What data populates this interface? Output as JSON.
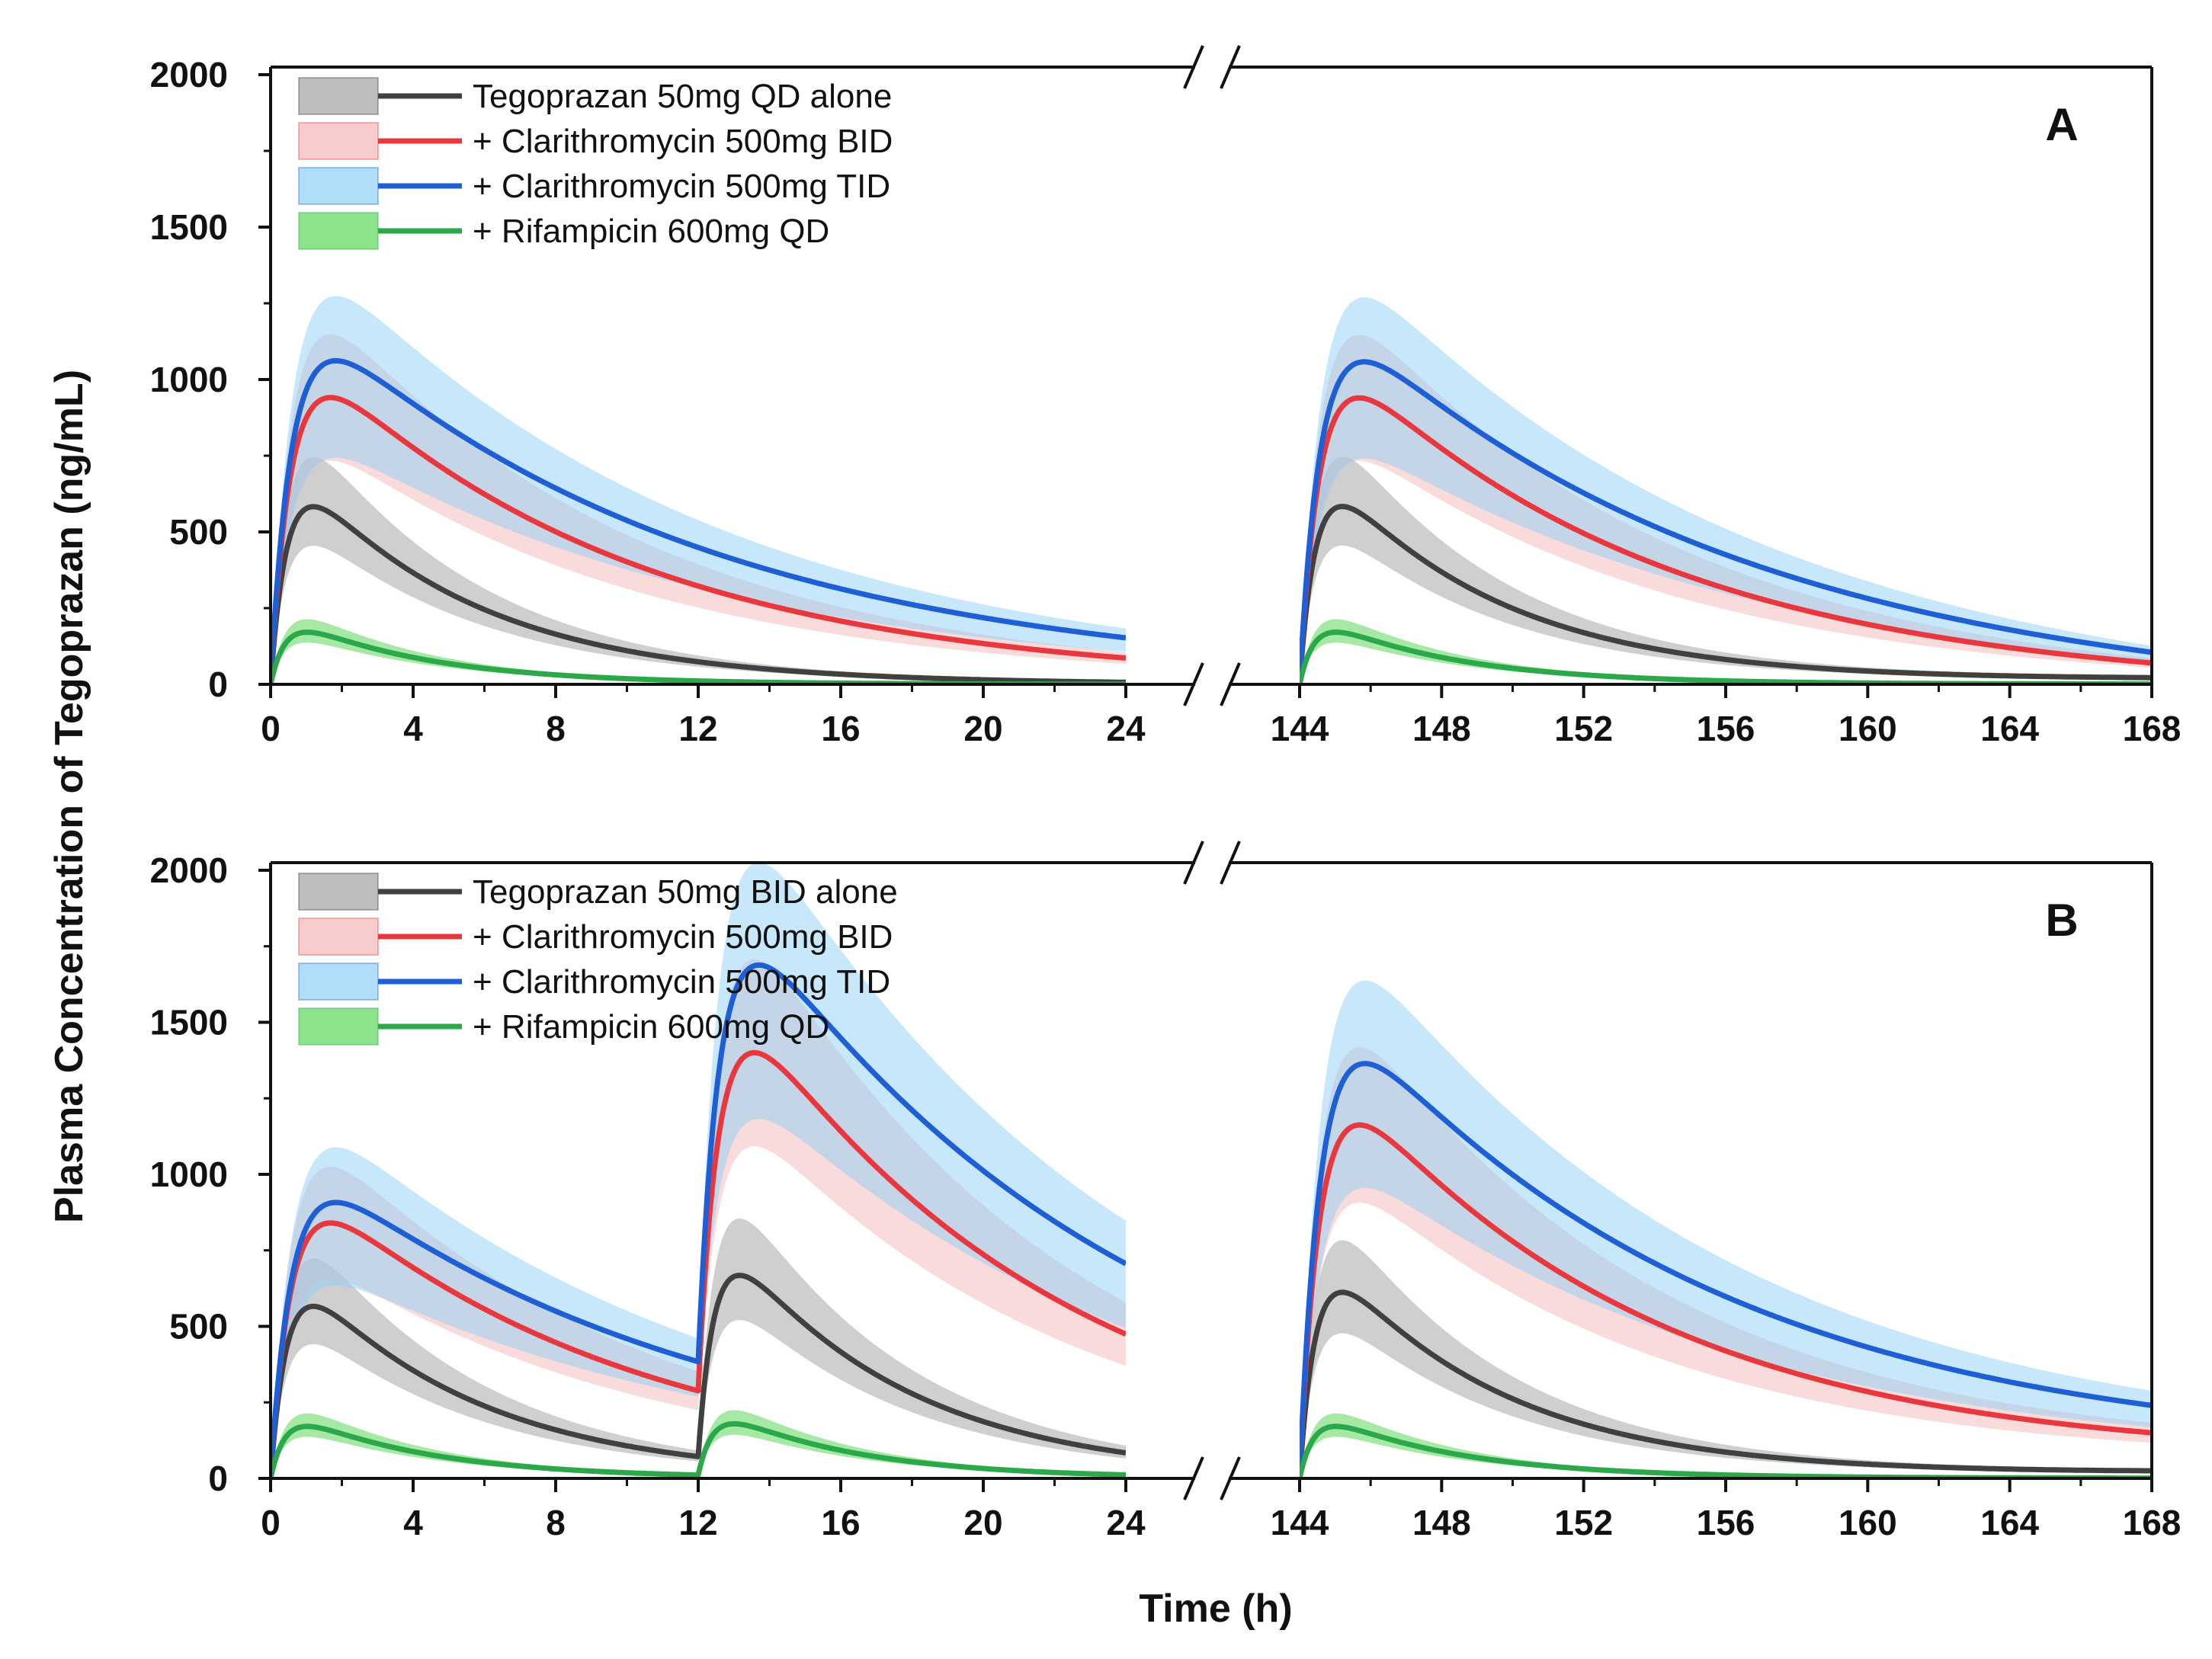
{
  "chart_data": {
    "type": "line",
    "ylabel": "Plasma Concentration of Tegoprazan (ng/mL)",
    "xlabel": "Time (h)",
    "ylim": [
      0,
      2000
    ],
    "yticks": [
      "0",
      "500",
      "1000",
      "1500",
      "2000"
    ],
    "xlim_left": [
      0,
      24
    ],
    "xlim_right": [
      144,
      168
    ],
    "xticks_left": [
      "0",
      "4",
      "8",
      "12",
      "16",
      "20",
      "24"
    ],
    "xticks_right": [
      "144",
      "148",
      "152",
      "156",
      "160",
      "164",
      "168"
    ],
    "legend_position": "top-left",
    "panels": [
      {
        "label": "A",
        "dosing_times": [
          0
        ],
        "series": [
          {
            "name": "Tegoprazan 50mg QD alone",
            "color": "#404040",
            "band": "#a8a8a8",
            "band_opacity": 0.55,
            "peak": 560,
            "tmax": 1.0,
            "k": 0.2,
            "lo": 0.78,
            "hi": 1.28,
            "ss": [
              1.03
            ],
            "end_value": 22
          },
          {
            "name": "+ Clarithromycin 500mg BID",
            "color": "#e8383d",
            "band": "#f5b0b0",
            "band_opacity": 0.45,
            "peak": 820,
            "tmax": 1.25,
            "k": 0.11,
            "lo": 0.78,
            "hi": 1.22,
            "ss": [
              1.12
            ],
            "end_value": 70
          },
          {
            "name": "+ Clarithromycin 500mg TID",
            "color": "#1f5fd6",
            "band": "#8fd0f5",
            "band_opacity": 0.5,
            "peak": 880,
            "tmax": 1.3,
            "k": 0.09,
            "lo": 0.7,
            "hi": 1.2,
            "ss": [
              1.17
            ],
            "end_value": 105
          },
          {
            "name": "+ Rifampicin 600mg QD",
            "color": "#2aa84a",
            "band": "#7fe07f",
            "band_opacity": 0.7,
            "peak": 170,
            "tmax": 0.9,
            "k": 0.26,
            "lo": 0.8,
            "hi": 1.25,
            "ss": [
              1.0
            ],
            "end_value": 1
          }
        ]
      },
      {
        "label": "B",
        "dosing_times": [
          0,
          12
        ],
        "series": [
          {
            "name": "Tegoprazan 50mg BID alone",
            "color": "#404040",
            "band": "#a8a8a8",
            "band_opacity": 0.55,
            "peak": 560,
            "tmax": 1.0,
            "k": 0.2,
            "lo": 0.78,
            "hi": 1.28,
            "ss": [
              1.0,
              1.08
            ],
            "end_value": 25
          },
          {
            "name": "+ Clarithromycin 500mg BID",
            "color": "#e8383d",
            "band": "#f5b0b0",
            "band_opacity": 0.45,
            "peak": 820,
            "tmax": 1.25,
            "k": 0.11,
            "lo": 0.78,
            "hi": 1.22,
            "ss": [
              1.0,
              1.38
            ],
            "end_value": 150
          },
          {
            "name": "+ Clarithromycin 500mg TID",
            "color": "#1f5fd6",
            "band": "#8fd0f5",
            "band_opacity": 0.5,
            "peak": 880,
            "tmax": 1.3,
            "k": 0.09,
            "lo": 0.7,
            "hi": 1.2,
            "ss": [
              1.0,
              1.5
            ],
            "end_value": 240
          },
          {
            "name": "+ Rifampicin 600mg QD",
            "color": "#2aa84a",
            "band": "#7fe07f",
            "band_opacity": 0.7,
            "peak": 170,
            "tmax": 0.9,
            "k": 0.26,
            "lo": 0.8,
            "hi": 1.25,
            "ss": [
              1.0,
              1.0
            ],
            "end_value": 1
          }
        ]
      }
    ]
  }
}
